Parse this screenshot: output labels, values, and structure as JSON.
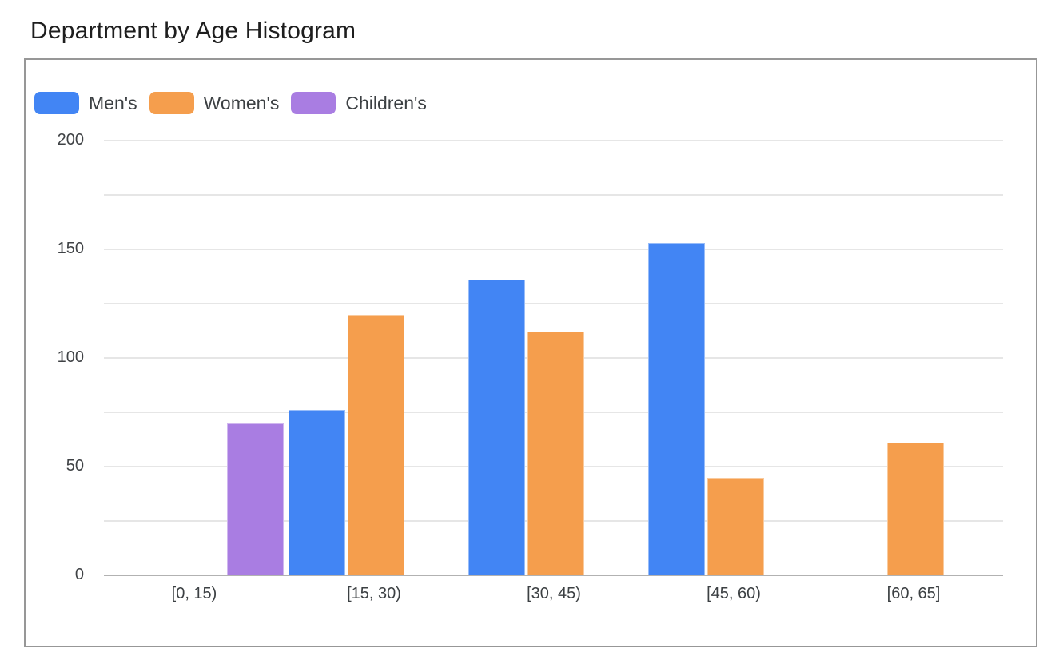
{
  "title": "Department by Age Histogram",
  "chart_data": {
    "type": "bar",
    "title": "Department by Age Histogram",
    "categories": [
      "[0, 15)",
      "[15, 30)",
      "[30, 45)",
      "[45, 60)",
      "[60, 65]"
    ],
    "series": [
      {
        "name": "Men's",
        "color": "#4285f4",
        "values": [
          null,
          76,
          136,
          153,
          null
        ]
      },
      {
        "name": "Women's",
        "color": "#f59e4d",
        "values": [
          null,
          120,
          112,
          45,
          61
        ]
      },
      {
        "name": "Children's",
        "color": "#a97de2",
        "values": [
          70,
          null,
          null,
          null,
          null
        ]
      }
    ],
    "ylim": [
      0,
      200
    ],
    "yticks": [
      0,
      50,
      100,
      150,
      200
    ],
    "grid_interval": 25,
    "grid": true,
    "legend_position": "top-left",
    "xlabel": "",
    "ylabel": "",
    "axis_label_color": "#3c4043",
    "gridline_color": "#e6e6e6"
  }
}
